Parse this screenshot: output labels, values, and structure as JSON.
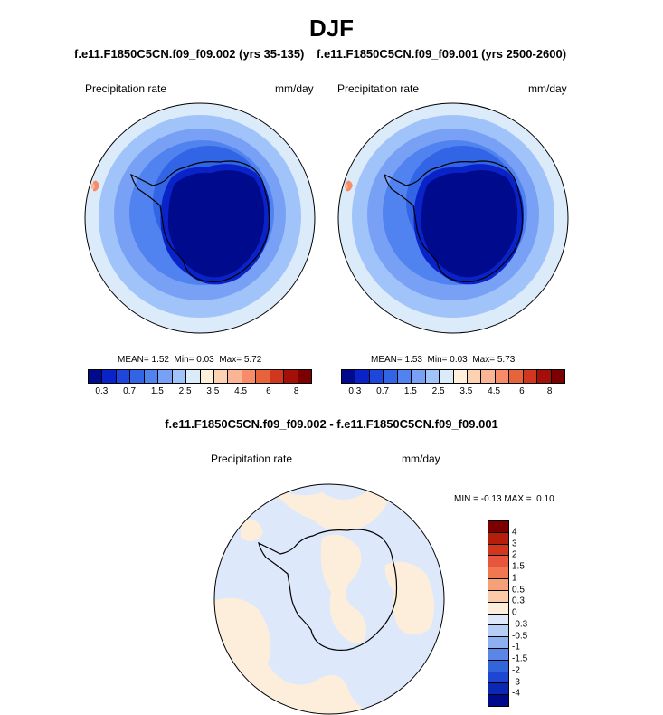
{
  "title": "DJF",
  "panels": [
    {
      "run_title": "f.e11.F1850C5CN.f09_f09.002 (yrs 35-135)",
      "variable": "Precipitation rate",
      "units": "mm/day",
      "stats": {
        "mean_label": "MEAN=",
        "mean": "1.52",
        "min_label": "Min=",
        "min": "0.03",
        "max_label": "Max=",
        "max": "5.72"
      }
    },
    {
      "run_title": "f.e11.F1850C5CN.f09_f09.001 (yrs 2500-2600)",
      "variable": "Precipitation rate",
      "units": "mm/day",
      "stats": {
        "mean_label": "MEAN=",
        "mean": "1.53",
        "min_label": "Min=",
        "min": "0.03",
        "max_label": "Max=",
        "max": "5.73"
      }
    }
  ],
  "diff_panel": {
    "title": "f.e11.F1850C5CN.f09_f09.002 - f.e11.F1850C5CN.f09_f09.001",
    "variable": "Precipitation rate",
    "units": "mm/day",
    "stats": {
      "min_label": "MIN =",
      "min": "-0.13",
      "max_label": "MAX =",
      "max": "0.10"
    }
  },
  "colorbar_top": {
    "colors": [
      "#000a8c",
      "#0a23c8",
      "#1e46dc",
      "#3264e6",
      "#5082f0",
      "#78a0f5",
      "#a0c3fa",
      "#dcebfa",
      "#fff0dc",
      "#fcd2b4",
      "#fab496",
      "#f68c69",
      "#e6643c",
      "#d2371e",
      "#a50f0a",
      "#7d0000"
    ],
    "labels": [
      "0.3",
      "0.7",
      "1.5",
      "2.5",
      "3.5",
      "4.5",
      "6",
      "8"
    ]
  },
  "colorbar_diff": {
    "colors": [
      "#7d0000",
      "#b41e0a",
      "#d2371e",
      "#e6553c",
      "#f07850",
      "#f6a078",
      "#fbcaa8",
      "#fdeedc",
      "#dde8fb",
      "#b6cdf6",
      "#8cb0f0",
      "#5a87e6",
      "#3264dc",
      "#1e46d2",
      "#0a28b4",
      "#000a8c"
    ],
    "labels": [
      "4",
      "3",
      "2",
      "1.5",
      "1",
      "0.5",
      "0.3",
      "0",
      "-0.3",
      "-0.5",
      "-1",
      "-1.5",
      "-2",
      "-3",
      "-4"
    ]
  }
}
